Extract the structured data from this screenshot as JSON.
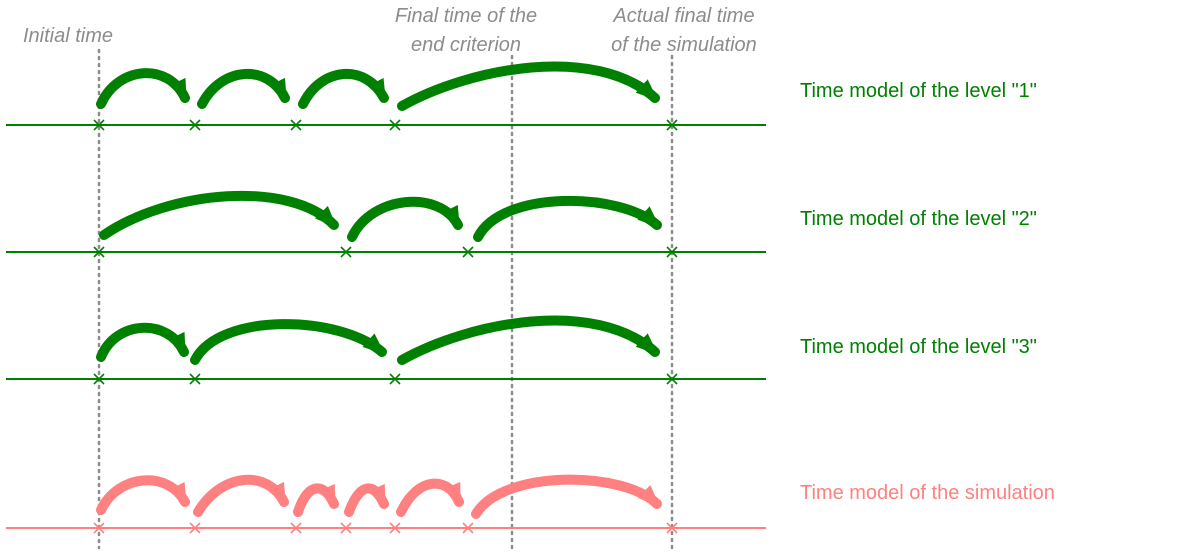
{
  "annotations": {
    "initial_time": "Initial time",
    "end_criterion_line1": "Final time of the",
    "end_criterion_line2": "end criterion",
    "actual_final_line1": "Actual final time",
    "actual_final_line2": "of the simulation"
  },
  "colors": {
    "level": "#008000",
    "simulation": "#ff8080",
    "guide": "#8c8c8c"
  },
  "timelines": [
    {
      "label": "Time model of the level \"1\"",
      "kind": "level"
    },
    {
      "label": "Time model of the level \"2\"",
      "kind": "level"
    },
    {
      "label": "Time model of the level \"3\"",
      "kind": "level"
    },
    {
      "label": "Time model of the simulation",
      "kind": "simulation"
    }
  ]
}
